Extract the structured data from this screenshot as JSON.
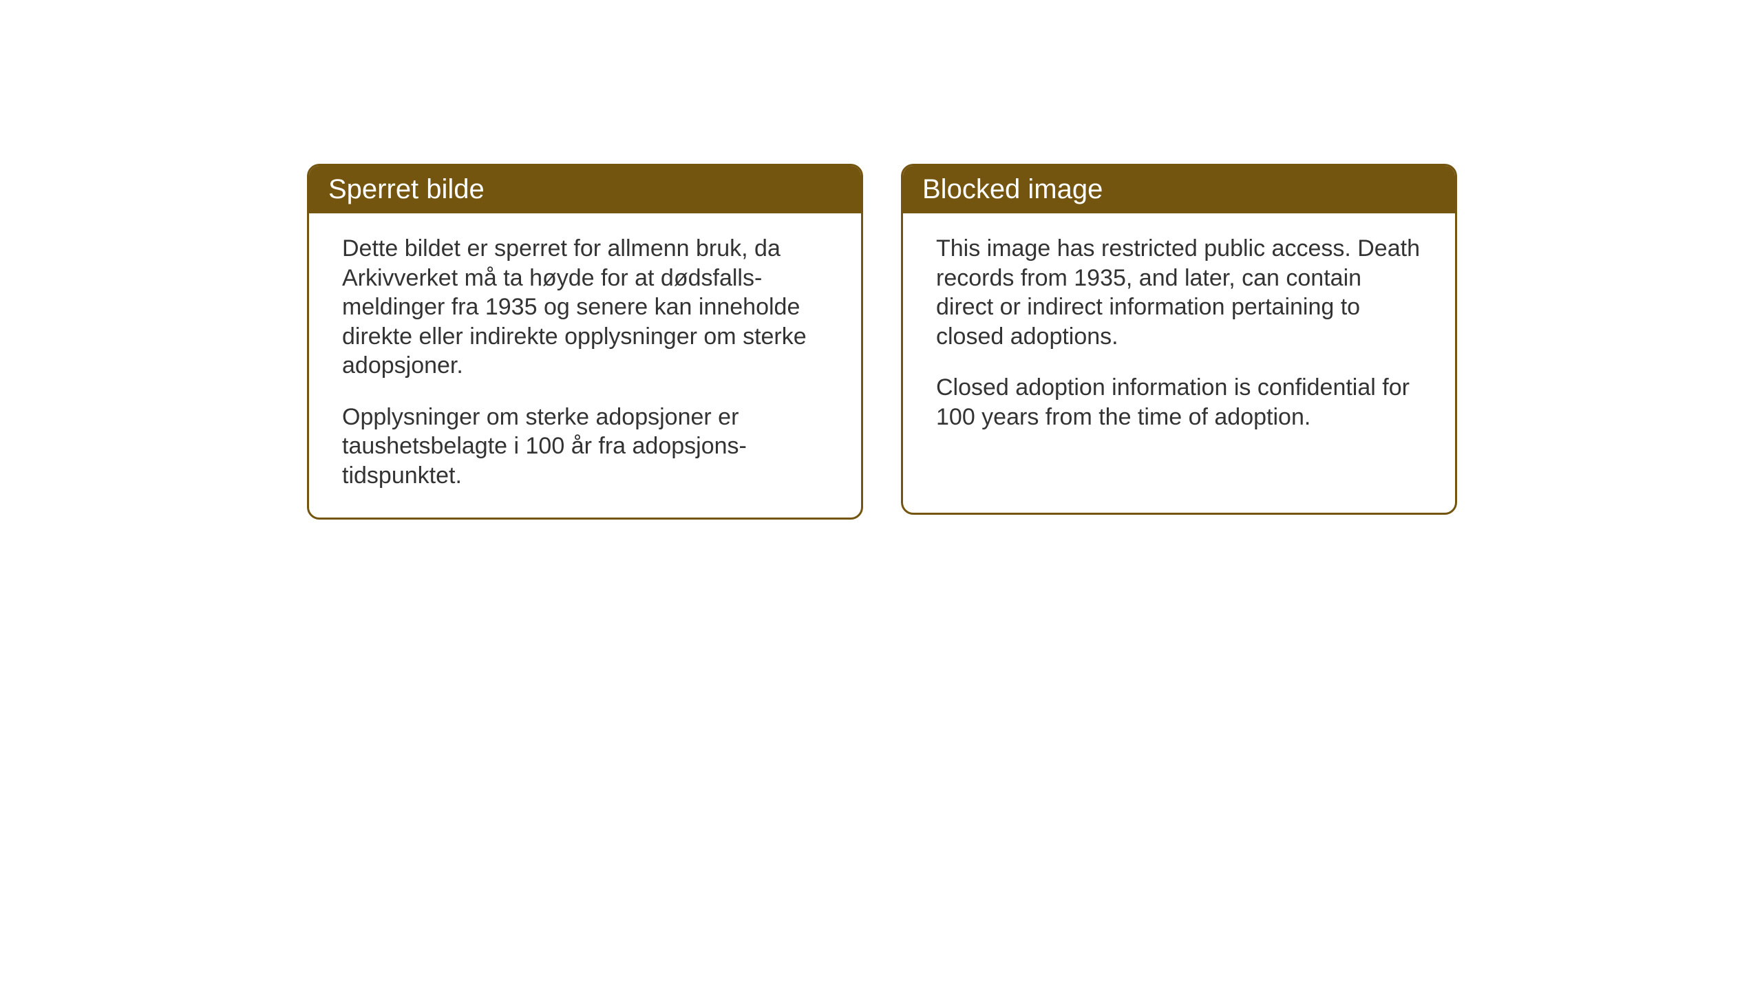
{
  "cards": {
    "norwegian": {
      "title": "Sperret bilde",
      "paragraph1": "Dette bildet er sperret for allmenn bruk, da Arkivverket må ta høyde for at dødsfalls-meldinger fra 1935 og senere kan inneholde direkte eller indirekte opplysninger om sterke adopsjoner.",
      "paragraph2": "Opplysninger om sterke adopsjoner er taushetsbelagte i 100 år fra adopsjons-tidspunktet."
    },
    "english": {
      "title": "Blocked image",
      "paragraph1": "This image has restricted public access. Death records from 1935, and later, can contain direct or indirect information pertaining to closed adoptions.",
      "paragraph2": "Closed adoption information is confidential for 100 years from the time of adoption."
    }
  },
  "styling": {
    "header_background": "#735510",
    "header_text_color": "#ffffff",
    "border_color": "#735510",
    "card_background": "#ffffff",
    "body_text_color": "#333333",
    "page_background": "#ffffff",
    "title_fontsize": 40,
    "body_fontsize": 34,
    "border_radius": 18,
    "border_width": 3
  }
}
